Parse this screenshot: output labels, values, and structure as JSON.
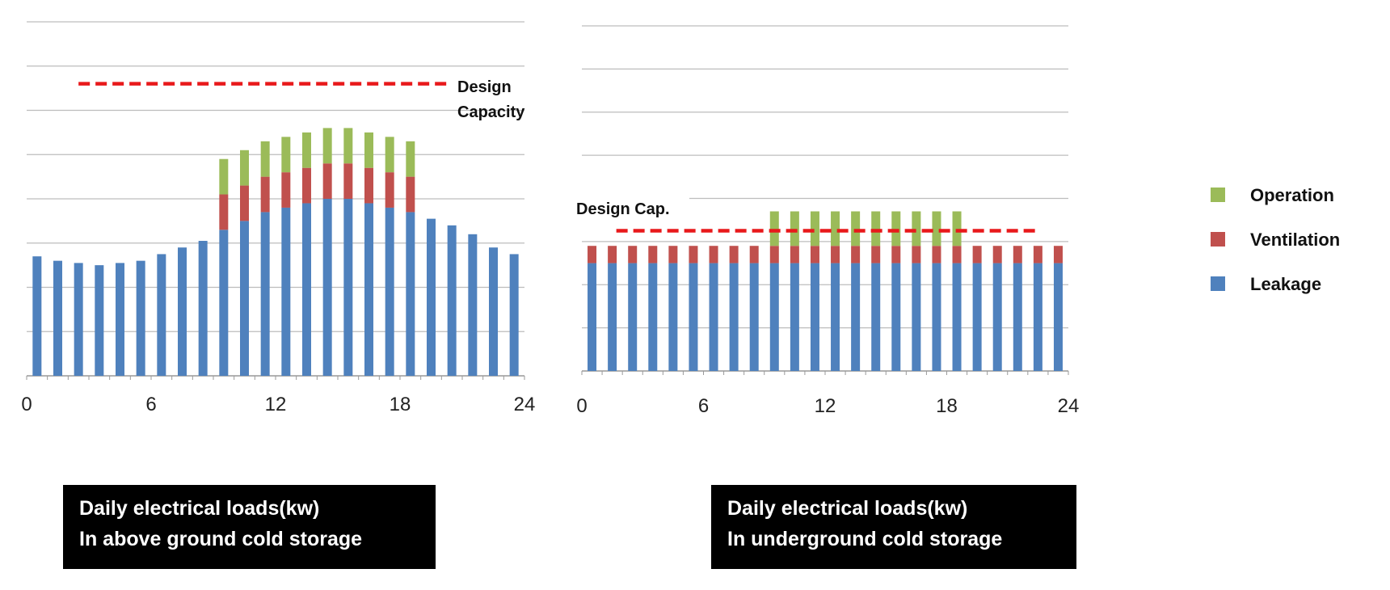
{
  "colors": {
    "leakage": "#4f81bd",
    "ventilation": "#c0504d",
    "operation": "#9bbb59",
    "design_line": "#e8191b",
    "grid": "#bdbdbd"
  },
  "legend": {
    "items": [
      {
        "label": "Operation",
        "color": "#9bbb59"
      },
      {
        "label": "Ventilation",
        "color": "#c0504d"
      },
      {
        "label": "Leakage",
        "color": "#4f81bd"
      }
    ]
  },
  "captions": [
    {
      "line1": "Daily electrical loads(kw)",
      "line2": "In above ground cold storage"
    },
    {
      "line1": "Daily electrical loads(kw)",
      "line2": "In underground cold storage"
    }
  ],
  "chart_data": [
    {
      "type": "bar",
      "stacked": true,
      "title": "Daily electrical loads(kw) In above ground cold storage",
      "x": [
        0,
        1,
        2,
        3,
        4,
        5,
        6,
        7,
        8,
        9,
        10,
        11,
        12,
        13,
        14,
        15,
        16,
        17,
        18,
        19,
        20,
        21,
        22,
        23
      ],
      "xticks": [
        "0",
        "6",
        "12",
        "18",
        "24"
      ],
      "xlim": [
        0,
        24
      ],
      "ylim": [
        0,
        8
      ],
      "grid": true,
      "series": [
        {
          "name": "Leakage",
          "values": [
            2.7,
            2.6,
            2.55,
            2.5,
            2.55,
            2.6,
            2.75,
            2.9,
            3.05,
            3.3,
            3.5,
            3.7,
            3.8,
            3.9,
            4.0,
            4.0,
            3.9,
            3.8,
            3.7,
            3.55,
            3.4,
            3.2,
            2.9,
            2.75
          ]
        },
        {
          "name": "Ventilation",
          "values": [
            0,
            0,
            0,
            0,
            0,
            0,
            0,
            0,
            0,
            0.8,
            0.8,
            0.8,
            0.8,
            0.8,
            0.8,
            0.8,
            0.8,
            0.8,
            0.8,
            0,
            0,
            0,
            0,
            0
          ]
        },
        {
          "name": "Operation",
          "values": [
            0,
            0,
            0,
            0,
            0,
            0,
            0,
            0,
            0,
            0.8,
            0.8,
            0.8,
            0.8,
            0.8,
            0.8,
            0.8,
            0.8,
            0.8,
            0.8,
            0,
            0,
            0,
            0,
            0
          ]
        }
      ],
      "annotation": {
        "label_line1": "Design",
        "label_line2": "Capacity",
        "value": 6.6,
        "x_range": [
          2.5,
          20.5
        ]
      }
    },
    {
      "type": "bar",
      "stacked": true,
      "title": "Daily electrical loads(kw) In underground cold storage",
      "x": [
        0,
        1,
        2,
        3,
        4,
        5,
        6,
        7,
        8,
        9,
        10,
        11,
        12,
        13,
        14,
        15,
        16,
        17,
        18,
        19,
        20,
        21,
        22,
        23
      ],
      "xticks": [
        "0",
        "6",
        "12",
        "18",
        "24"
      ],
      "xlim": [
        0,
        24
      ],
      "ylim": [
        0,
        8
      ],
      "grid": true,
      "series": [
        {
          "name": "Leakage",
          "values": [
            2.5,
            2.5,
            2.5,
            2.5,
            2.5,
            2.5,
            2.5,
            2.5,
            2.5,
            2.5,
            2.5,
            2.5,
            2.5,
            2.5,
            2.5,
            2.5,
            2.5,
            2.5,
            2.5,
            2.5,
            2.5,
            2.5,
            2.5,
            2.5
          ]
        },
        {
          "name": "Ventilation",
          "values": [
            0.4,
            0.4,
            0.4,
            0.4,
            0.4,
            0.4,
            0.4,
            0.4,
            0.4,
            0.4,
            0.4,
            0.4,
            0.4,
            0.4,
            0.4,
            0.4,
            0.4,
            0.4,
            0.4,
            0.4,
            0.4,
            0.4,
            0.4,
            0.4
          ]
        },
        {
          "name": "Operation",
          "values": [
            0,
            0,
            0,
            0,
            0,
            0,
            0,
            0,
            0,
            0.8,
            0.8,
            0.8,
            0.8,
            0.8,
            0.8,
            0.8,
            0.8,
            0.8,
            0.8,
            0,
            0,
            0,
            0,
            0
          ]
        }
      ],
      "annotation": {
        "label": "Design Cap.",
        "value": 3.25,
        "x_range": [
          1.7,
          22.5
        ]
      }
    }
  ]
}
